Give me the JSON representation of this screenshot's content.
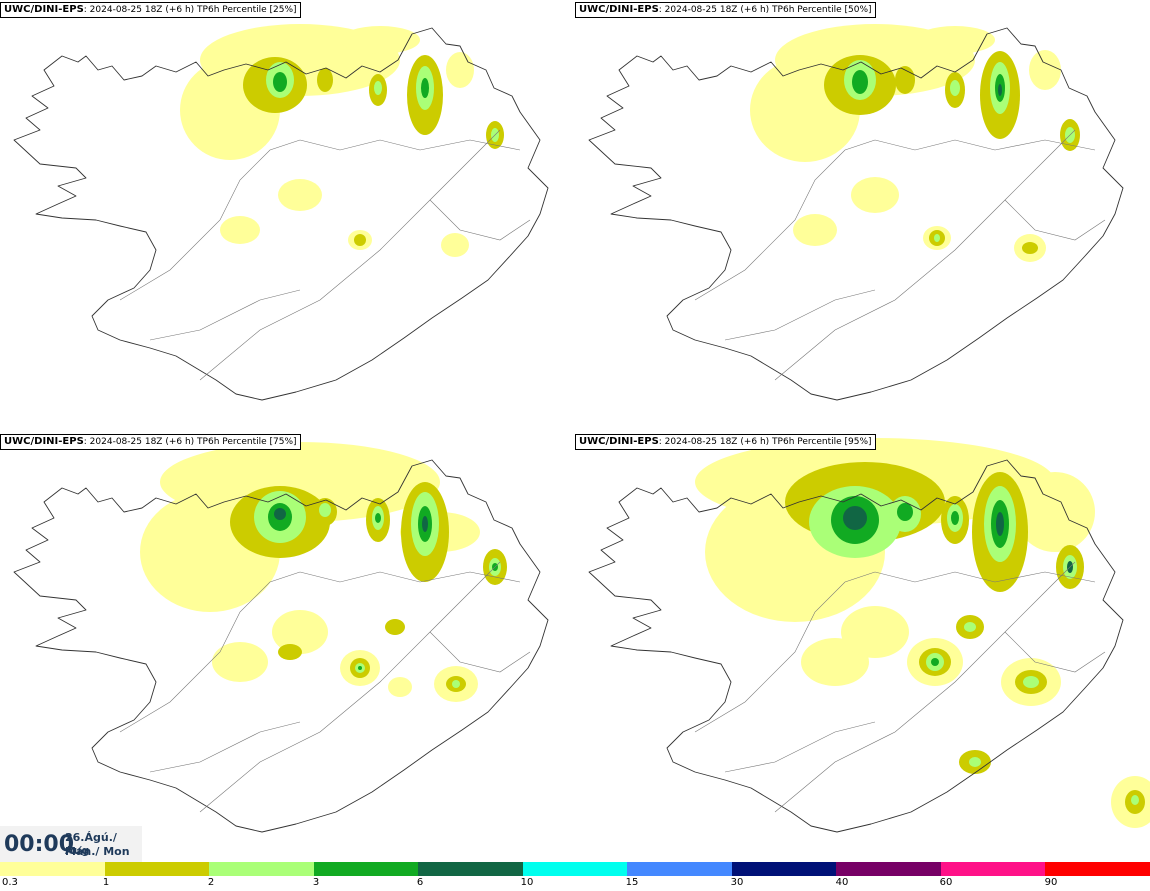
{
  "panels": [
    {
      "model": "UWC/DINI-EPS",
      "run": "2024-08-25 18Z (+6 h)",
      "field": "TP6h Percentile [25%]"
    },
    {
      "model": "UWC/DINI-EPS",
      "run": "2024-08-25 18Z (+6 h)",
      "field": "TP6h Percentile [50%]"
    },
    {
      "model": "UWC/DINI-EPS",
      "run": "2024-08-25 18Z (+6 h)",
      "field": "TP6h Percentile [75%]"
    },
    {
      "model": "UWC/DINI-EPS",
      "run": "2024-08-25 18Z (+6 h)",
      "field": "TP6h Percentile [95%]"
    }
  ],
  "time": {
    "clock": "00:00",
    "date": "26.Ágú./ Aug",
    "weekday": "Mán./ Mon"
  },
  "legend": {
    "ticks": [
      "0.3",
      "1",
      "2",
      "3",
      "6",
      "10",
      "15",
      "30",
      "40",
      "60",
      "90"
    ],
    "colors": [
      "#ffff99",
      "#cccc00",
      "#aaff77",
      "#11aa22",
      "#116644",
      "#00ffee",
      "#4488ff",
      "#001177",
      "#770066",
      "#ff1188",
      "#ff0000"
    ]
  },
  "colors": {
    "coast": "#333333",
    "shade1": "#ffff99",
    "shade2": "#cccc00",
    "shade3": "#aaff77",
    "shade4": "#11aa22",
    "shade5": "#116644"
  }
}
